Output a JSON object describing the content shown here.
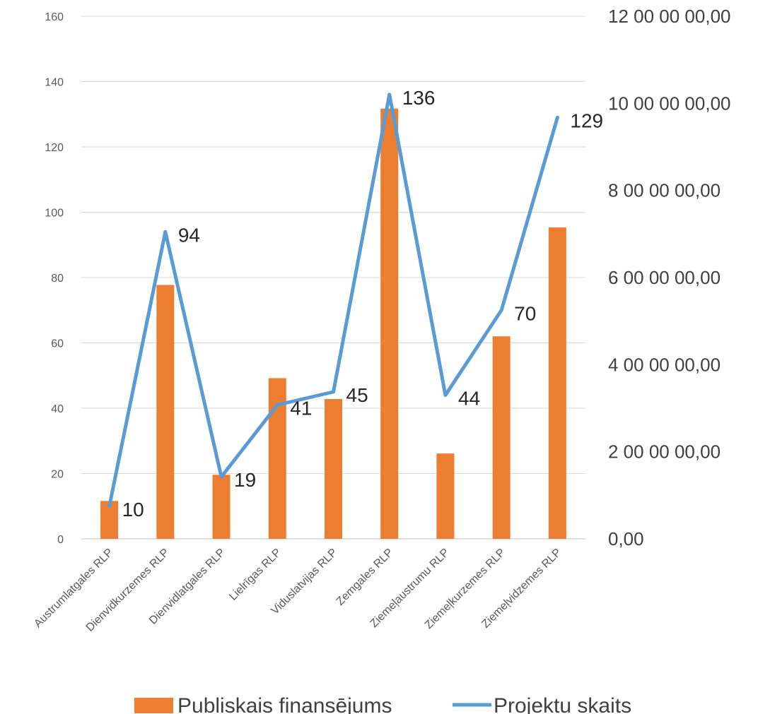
{
  "chart_data": {
    "type": "bar",
    "categories": [
      "Austrumlatgales RLP",
      "Dienvidkurzemes RLP",
      "Dienvidlatgales RLP",
      "Lielrīgas RLP",
      "Viduslatvijas RLP",
      "Zemgales RLP",
      "Ziemeļaustrumu RLP",
      "Ziemeļkurzemes RLP",
      "Ziemeļvidzemes RLP"
    ],
    "series": [
      {
        "name": "Publiskais finansējums",
        "type": "bar",
        "axis": "right",
        "color": "#ED7D31",
        "values": [
          870000,
          5830000,
          1470000,
          3690000,
          3210000,
          9880000,
          1960000,
          4650000,
          7150000
        ]
      },
      {
        "name": "Projektu skaits",
        "type": "line",
        "axis": "left",
        "color": "#5B9BD5",
        "values": [
          10,
          94,
          19,
          41,
          45,
          136,
          44,
          70,
          129
        ],
        "labels": [
          "10",
          "94",
          "19",
          "41",
          "45",
          "136",
          "44",
          "70",
          "129"
        ]
      }
    ],
    "y_left": {
      "ylim": [
        0,
        160
      ],
      "ticks": [
        "0",
        "20",
        "40",
        "60",
        "80",
        "100",
        "120",
        "140",
        "160"
      ]
    },
    "y_right": {
      "ylim": [
        0,
        12000000
      ],
      "ticks": [
        "0,00",
        "2 00 00 00,00",
        "4 00 00 00,00",
        "6 00 00 00,00",
        "8 00 00 00,00",
        "10 00 00 00,00",
        "12 00 00 00,00"
      ]
    },
    "grid": true,
    "legend_position": "bottom"
  }
}
